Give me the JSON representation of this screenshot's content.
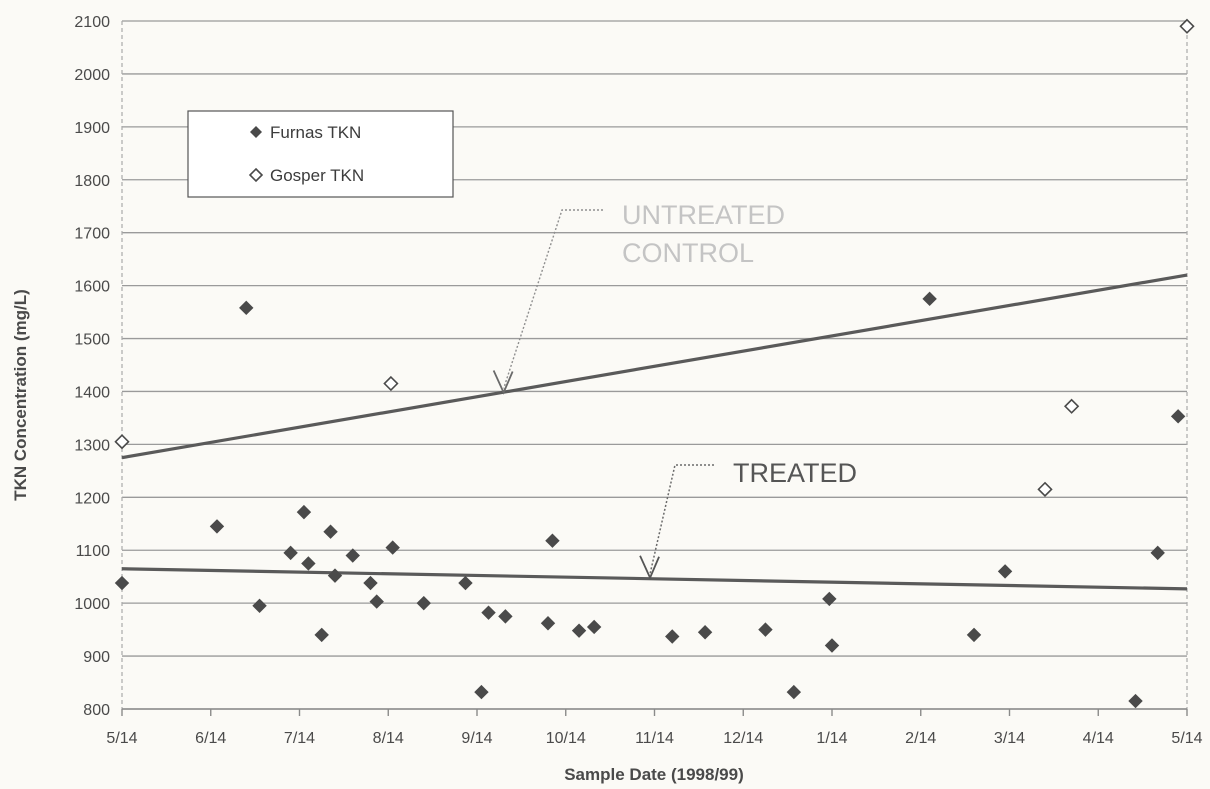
{
  "chart_data": {
    "type": "scatter",
    "title": "",
    "xlabel": "Sample Date (1998/99)",
    "ylabel": "TKN Concentration (mg/L)",
    "ylim": [
      800,
      2100
    ],
    "yticks": [
      800,
      900,
      1000,
      1100,
      1200,
      1300,
      1400,
      1500,
      1600,
      1700,
      1800,
      1900,
      2000,
      2100
    ],
    "xticks": [
      "5/14",
      "6/14",
      "7/14",
      "8/14",
      "9/14",
      "10/14",
      "11/14",
      "12/14",
      "1/14",
      "2/14",
      "3/14",
      "4/14",
      "5/14"
    ],
    "x_unit": "months since 5/14/1998",
    "xlim": [
      0,
      12
    ],
    "grid": "horizontal",
    "legend_position": "top-left",
    "series": [
      {
        "name": "Furnas TKN",
        "marker": "filled-diamond",
        "color": "#4a4a4a",
        "points": [
          {
            "x": 0.0,
            "y": 1038
          },
          {
            "x": 1.07,
            "y": 1145
          },
          {
            "x": 1.4,
            "y": 1558
          },
          {
            "x": 1.55,
            "y": 995
          },
          {
            "x": 1.9,
            "y": 1095
          },
          {
            "x": 2.05,
            "y": 1172
          },
          {
            "x": 2.1,
            "y": 1075
          },
          {
            "x": 2.25,
            "y": 940
          },
          {
            "x": 2.35,
            "y": 1135
          },
          {
            "x": 2.4,
            "y": 1052
          },
          {
            "x": 2.6,
            "y": 1090
          },
          {
            "x": 2.8,
            "y": 1038
          },
          {
            "x": 2.87,
            "y": 1003
          },
          {
            "x": 3.05,
            "y": 1105
          },
          {
            "x": 3.4,
            "y": 1000
          },
          {
            "x": 3.87,
            "y": 1038
          },
          {
            "x": 4.05,
            "y": 832
          },
          {
            "x": 4.13,
            "y": 982
          },
          {
            "x": 4.32,
            "y": 975
          },
          {
            "x": 4.8,
            "y": 962
          },
          {
            "x": 4.85,
            "y": 1118
          },
          {
            "x": 5.15,
            "y": 948
          },
          {
            "x": 5.32,
            "y": 955
          },
          {
            "x": 6.2,
            "y": 937
          },
          {
            "x": 6.57,
            "y": 945
          },
          {
            "x": 7.25,
            "y": 950
          },
          {
            "x": 7.57,
            "y": 832
          },
          {
            "x": 7.97,
            "y": 1008
          },
          {
            "x": 8.0,
            "y": 920
          },
          {
            "x": 9.1,
            "y": 1575
          },
          {
            "x": 9.6,
            "y": 940
          },
          {
            "x": 9.95,
            "y": 1060
          },
          {
            "x": 11.42,
            "y": 815
          },
          {
            "x": 11.67,
            "y": 1095
          },
          {
            "x": 11.9,
            "y": 1353
          }
        ]
      },
      {
        "name": "Gosper TKN",
        "marker": "open-diamond",
        "color": "#4a4a4a",
        "points": [
          {
            "x": 0.0,
            "y": 1305
          },
          {
            "x": 3.03,
            "y": 1415
          },
          {
            "x": 10.4,
            "y": 1215
          },
          {
            "x": 10.7,
            "y": 1372
          },
          {
            "x": 12.0,
            "y": 2090
          }
        ]
      }
    ],
    "trendlines": [
      {
        "label": "UNTREATED CONTROL",
        "start": {
          "x": 0,
          "y": 1275
        },
        "end": {
          "x": 12,
          "y": 1620
        }
      },
      {
        "label": "TREATED",
        "start": {
          "x": 0,
          "y": 1065
        },
        "end": {
          "x": 12,
          "y": 1027
        }
      }
    ],
    "annotations": [
      {
        "text_lines": [
          "UNTREATED",
          "CONTROL"
        ],
        "color": "#c4c4c4",
        "points_to": {
          "x": 4.3,
          "y": 1398
        }
      },
      {
        "text_lines": [
          "TREATED"
        ],
        "color": "#555555",
        "points_to": {
          "x": 5.95,
          "y": 1048
        }
      }
    ]
  }
}
